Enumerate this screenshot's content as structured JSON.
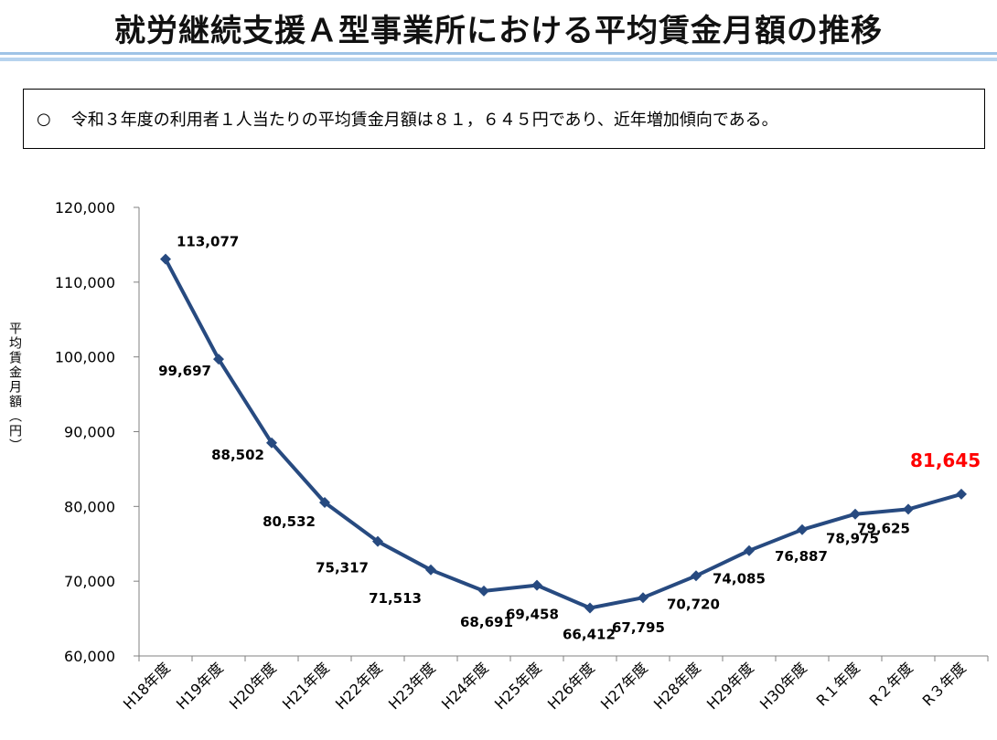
{
  "title": "就労継続支援Ａ型事業所における平均賃金月額の推移",
  "note": {
    "bullet": "○",
    "text": "令和３年度の利用者１人当たりの平均賃金月額は８１，６４５円であり、近年増加傾向である。"
  },
  "colors": {
    "line": "#274a80",
    "highlight_label": "#ff0000",
    "title_rule": "#9fc3e6"
  },
  "chart_data": {
    "type": "line",
    "title": "",
    "xlabel": "",
    "ylabel": "平均賃金月額（円）",
    "ylim": [
      60000,
      120000
    ],
    "yticks": [
      60000,
      70000,
      80000,
      90000,
      100000,
      110000,
      120000
    ],
    "ytick_labels": [
      "60,000",
      "70,000",
      "80,000",
      "90,000",
      "100,000",
      "110,000",
      "120,000"
    ],
    "grid": false,
    "legend": "none",
    "categories": [
      "H18年度",
      "H19年度",
      "H20年度",
      "H21年度",
      "H22年度",
      "H23年度",
      "H24年度",
      "H25年度",
      "H26年度",
      "H27年度",
      "H28年度",
      "H29年度",
      "H30年度",
      "R１年度",
      "R２年度",
      "R３年度"
    ],
    "series": [
      {
        "values": [
          113077,
          99697,
          88502,
          80532,
          75317,
          71513,
          68691,
          69458,
          66412,
          67795,
          70720,
          74085,
          76887,
          78975,
          79625,
          81645
        ],
        "labels": [
          "113,077",
          "99,697",
          "88,502",
          "80,532",
          "75,317",
          "71,513",
          "68,691",
          "69,458",
          "66,412",
          "67,795",
          "70,720",
          "74,085",
          "76,887",
          "78,975",
          "79,625",
          "81,645"
        ],
        "highlight_index": 15
      }
    ]
  }
}
